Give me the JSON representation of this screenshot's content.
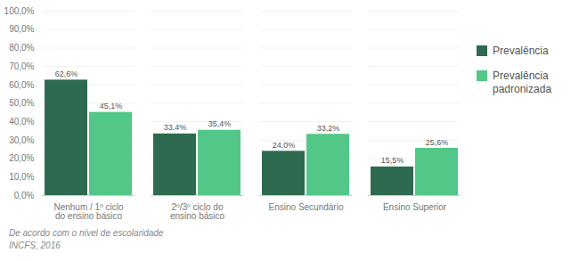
{
  "chart_data": {
    "type": "bar",
    "categories": [
      "Nenhum / 1º ciclo\ndo ensino básico",
      "2º/3º ciclo do\nensino básico",
      "Ensino Secundário",
      "Ensino Superior"
    ],
    "series": [
      {
        "name": "Prevalência",
        "color": "#2d6a4f",
        "values": [
          62.6,
          33.4,
          24.0,
          15.5
        ],
        "value_labels": [
          "62,6%",
          "33,4%",
          "24,0%",
          "15,5%"
        ]
      },
      {
        "name": "Prevalência\npadronizada",
        "color": "#52c788",
        "values": [
          45.1,
          35.4,
          33.2,
          25.6
        ],
        "value_labels": [
          "45,1%",
          "35,4%",
          "33,2%",
          "25,6%"
        ]
      }
    ],
    "ylim": [
      0,
      100
    ],
    "yticks": [
      {
        "value": 0,
        "label": "0,0%"
      },
      {
        "value": 10,
        "label": "10,0%"
      },
      {
        "value": 20,
        "label": "20,0%"
      },
      {
        "value": 30,
        "label": "30,0%"
      },
      {
        "value": 40,
        "label": "40,0%"
      },
      {
        "value": 50,
        "label": "50,0%"
      },
      {
        "value": 60,
        "label": "60,0%"
      },
      {
        "value": 70,
        "label": "70,0%"
      },
      {
        "value": 80,
        "label": "80,0%"
      },
      {
        "value": 90,
        "label": "90,0%"
      },
      {
        "value": 100,
        "label": "100,0%"
      }
    ],
    "grid": true,
    "legend": "right",
    "data_labels": true,
    "annotations": [
      "De acordo com o nível de escolaridade",
      "INCFS, 2016"
    ]
  }
}
